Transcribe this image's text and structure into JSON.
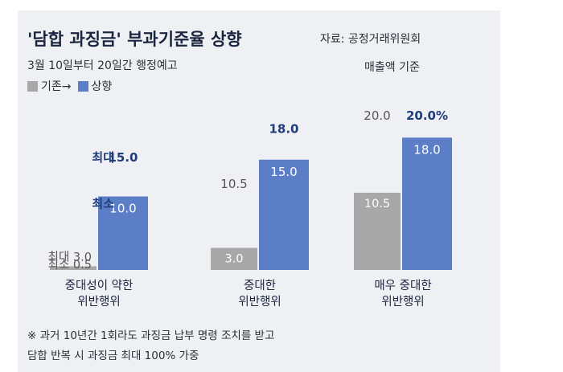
{
  "title": "'담합 과징금' 부과기준율 상향",
  "source": "자료: 공정거래위원회",
  "subtitle": "3월 10일부터 20일간 행정예고",
  "criterion_note": "매출액 기준",
  "legend": [
    {
      "label": "기존→",
      "color": "#a8a8a8"
    },
    {
      "label": "상향",
      "color": "#5b7ec7"
    }
  ],
  "colors": {
    "old": "#a8a8a8",
    "new": "#5b7ec7",
    "accent_text": "#1f3d7a",
    "plain_text": "#555555"
  },
  "footnote": [
    "※ 과거 10년간 1회라도 과징금 납부 명령 조치를 받고",
    "담합 반복 시 과징금 최대 100% 가중"
  ],
  "chart_data": {
    "type": "bar",
    "unit": "%",
    "ylim": [
      0,
      20
    ],
    "grid": false,
    "categories": [
      [
        "중대성이 약한",
        "위반행위"
      ],
      [
        "중대한",
        "위반행위"
      ],
      [
        "매우 중대한",
        "위반행위"
      ]
    ],
    "series": [
      {
        "name": "기존",
        "values": [
          0.5,
          3.0,
          10.5
        ],
        "max": [
          3.0,
          10.5,
          20.0
        ]
      },
      {
        "name": "상향",
        "values": [
          10.0,
          15.0,
          18.0
        ],
        "max": [
          15.0,
          18.0,
          20.0
        ]
      }
    ],
    "labels": {
      "old_min": [
        "최소 0.5",
        "3.0",
        "10.5"
      ],
      "old_max": [
        "최대 3.0",
        "10.5",
        "20.0"
      ],
      "new_min": [
        "10.0",
        "15.0",
        "18.0"
      ],
      "new_max": [
        "15.0",
        "18.0",
        "20.0%"
      ],
      "new_min_prefix": "최소",
      "new_max_prefix": "최대"
    }
  }
}
